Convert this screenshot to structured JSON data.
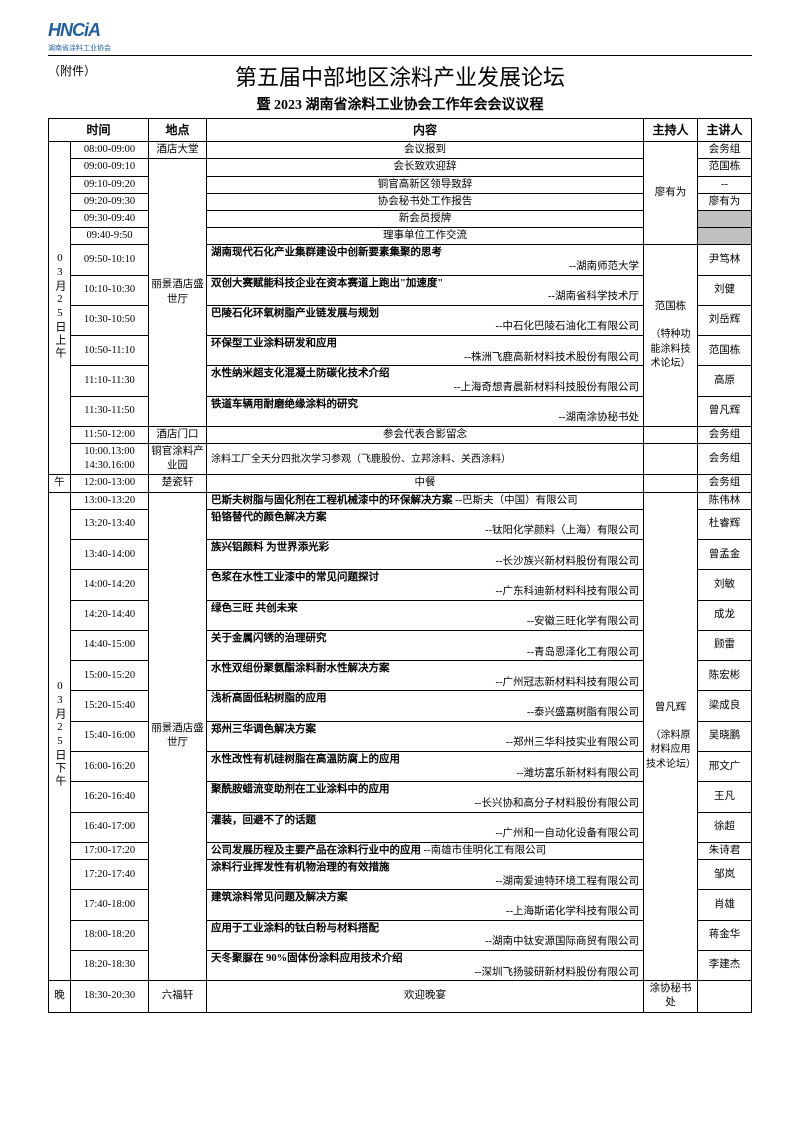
{
  "attach": "（附件）",
  "title1": "第五届中部地区涂料产业发展论坛",
  "title2": "暨 2023 湖南省涂料工业协会工作年会会议议程",
  "headers": {
    "time": "时间",
    "loc": "地点",
    "content": "内容",
    "host": "主持人",
    "speaker": "主讲人"
  },
  "date1": "03月25日上午",
  "date2": "午",
  "date3": "03月25日下午",
  "date4": "晚",
  "loc_lobby": "酒店大堂",
  "loc_hall": "丽景酒店盛世厅",
  "loc_gate": "酒店门口",
  "loc_park": "铜官涂料产业园",
  "loc_rest": "楚瓷轩",
  "loc_liufu": "六福轩",
  "host1": "廖有为",
  "host2_a": "范国栋",
  "host2_b": "（特种功能涂料技术论坛）",
  "host3_a": "曾凡辉",
  "host3_b": "（涂料原材料应用技术论坛）",
  "host4": "涂协秘书处",
  "rows_am": [
    {
      "time": "08:00-09:00",
      "content": "会议报到",
      "speaker": "会务组"
    },
    {
      "time": "09:00-09:10",
      "content": "会长致欢迎辞",
      "speaker": "范国栋"
    },
    {
      "time": "09:10-09:20",
      "content": "铜官高新区领导致辞",
      "speaker": "--"
    },
    {
      "time": "09:20-09:30",
      "content": "协会秘书处工作报告",
      "speaker": "廖有为"
    },
    {
      "time": "09:30-09:40",
      "content": "新会员授牌",
      "speaker": "",
      "gray": true
    },
    {
      "time": "09:40-9:50",
      "content": "理事单位工作交流",
      "speaker": "",
      "gray": true
    }
  ],
  "rows_am2": [
    {
      "time": "09:50-10:10",
      "topic": "湖南现代石化产业集群建设中创新要素集聚的思考",
      "org": "--湖南师范大学",
      "speaker": "尹笃林"
    },
    {
      "time": "10:10-10:30",
      "topic": "双创大赛赋能科技企业在资本赛道上跑出\"加速度\"",
      "org": "--湖南省科学技术厅",
      "speaker": "刘健"
    },
    {
      "time": "10:30-10:50",
      "topic": "巴陵石化环氧树脂产业链发展与规划",
      "org": "--中石化巴陵石油化工有限公司",
      "speaker": "刘岳辉"
    },
    {
      "time": "10:50-11:10",
      "topic": "环保型工业涂料研发和应用",
      "org": "--株洲飞鹿高新材料技术股份有限公司",
      "speaker": "范国栋"
    },
    {
      "time": "11:10-11:30",
      "topic": "水性纳米超支化混凝土防碳化技术介绍",
      "org": "--上海奇想青晨新材料科技股份有限公司",
      "speaker": "高原"
    },
    {
      "time": "11:30-11:50",
      "topic": "铁道车辆用耐磨绝缘涂料的研究",
      "org": "--湖南涂协秘书处",
      "speaker": "曾凡辉"
    }
  ],
  "row_photo": {
    "time": "11:50-12:00",
    "content": "参会代表合影留念",
    "speaker": "会务组"
  },
  "row_visit": {
    "time": "10:00.13:00\n14:30.16:00",
    "content": "涂料工厂全天分四批次学习参观（飞鹿股份、立邦涂料、关西涂料）",
    "speaker": "会务组"
  },
  "row_lunch": {
    "time": "12:00-13:00",
    "content": "中餐",
    "speaker": "会务组"
  },
  "rows_pm": [
    {
      "time": "13:00-13:20",
      "topic": "巴斯夫树脂与固化剂在工程机械漆中的环保解决方案",
      "org": "--巴斯夫（中国）有限公司",
      "speaker": "陈伟林",
      "inline": true
    },
    {
      "time": "13:20-13:40",
      "topic": "铅铬替代的颜色解决方案",
      "org": "--钛阳化学颜料（上海）有限公司",
      "speaker": "杜睿辉"
    },
    {
      "time": "13:40-14:00",
      "topic": "族兴铝颜料  为世界添光彩",
      "org": "--长沙族兴新材料股份有限公司",
      "speaker": "曾孟金"
    },
    {
      "time": "14:00-14:20",
      "topic": "色浆在水性工业漆中的常见问题探讨",
      "org": "--广东科迪新材料科技有限公司",
      "speaker": "刘敏"
    },
    {
      "time": "14:20-14:40",
      "topic": "绿色三旺  共创未来",
      "org": "--安徽三旺化学有限公司",
      "speaker": "成龙"
    },
    {
      "time": "14:40-15:00",
      "topic": "关于金属闪锈的治理研究",
      "org": "--青岛恩泽化工有限公司",
      "speaker": "顾雷"
    },
    {
      "time": "15:00-15:20",
      "topic": "水性双组份聚氨酯涂料耐水性解决方案",
      "org": "--广州冠志新材料科技有限公司",
      "speaker": "陈宏彬"
    },
    {
      "time": "15:20-15:40",
      "topic": "浅析高固低粘树脂的应用",
      "org": "--泰兴盛嘉树脂有限公司",
      "speaker": "梁成良"
    },
    {
      "time": "15:40-16:00",
      "topic": "郑州三华调色解决方案",
      "org": "--郑州三华科技实业有限公司",
      "speaker": "吴晓鹏"
    },
    {
      "time": "16:00-16:20",
      "topic": "水性改性有机硅树脂在高温防腐上的应用",
      "org": "--潍坊富乐新材料有限公司",
      "speaker": "邢文广"
    },
    {
      "time": "16:20-16:40",
      "topic": "聚酰胺蜡流变助剂在工业涂料中的应用",
      "org": "--长兴协和高分子材料股份有限公司",
      "speaker": "王凡"
    },
    {
      "time": "16:40-17:00",
      "topic": "灌装，回避不了的话题",
      "org": "--广州和一自动化设备有限公司",
      "speaker": "徐超"
    },
    {
      "time": "17:00-17:20",
      "topic": "公司发展历程及主要产品在涂料行业中的应用",
      "org": "--南雄市佳明化工有限公司",
      "speaker": "朱诗君",
      "inline": true
    },
    {
      "time": "17:20-17:40",
      "topic": "涂料行业挥发性有机物治理的有效措施",
      "org": "--湖南爱迪特环境工程有限公司",
      "speaker": "邹岚"
    },
    {
      "time": "17:40-18:00",
      "topic": "建筑涂料常见问题及解决方案",
      "org": "--上海斯诺化学科技有限公司",
      "speaker": "肖雄"
    },
    {
      "time": "18:00-18:20",
      "topic": "应用于工业涂料的钛白粉与材料搭配",
      "org": "--湖南中钛安源国际商贸有限公司",
      "speaker": "蒋金华"
    },
    {
      "time": "18:20-18:30",
      "topic": "天冬聚脲在 90%固体份涂料应用技术介绍",
      "org": "--深圳飞扬骏研新材料股份有限公司",
      "speaker": "李建杰"
    }
  ],
  "row_dinner": {
    "time": "18:30-20:30",
    "content": "欢迎晚宴"
  }
}
